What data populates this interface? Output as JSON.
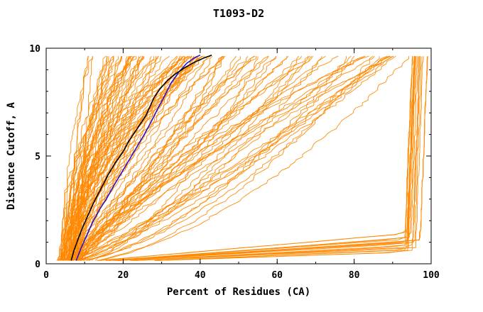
{
  "chart_data": {
    "type": "line",
    "title": "T1093-D2",
    "xlabel": "Percent of Residues (CA)",
    "ylabel": "Distance Cutoff, A",
    "xlim": [
      0,
      100
    ],
    "ylim": [
      0,
      10
    ],
    "xticks": [
      0,
      20,
      40,
      60,
      80,
      100
    ],
    "yticks": [
      0,
      5,
      10
    ],
    "x_minor_step": 10,
    "y_minor_step": 1,
    "grid": false,
    "legend": null,
    "colors": {
      "model_curves": "#ff8800",
      "highlight_black": "#000000",
      "highlight_blue": "#2a16c8",
      "axis": "#000000",
      "background": "#ffffff"
    },
    "series": [
      {
        "name": "blue-highlight-model",
        "color": "#2a16c8",
        "width": 1.6,
        "points": [
          [
            7.8,
            0.15
          ],
          [
            9,
            0.7
          ],
          [
            10.5,
            1.3
          ],
          [
            12,
            1.9
          ],
          [
            13.8,
            2.5
          ],
          [
            15.6,
            3.0
          ],
          [
            17.5,
            3.6
          ],
          [
            19.5,
            4.2
          ],
          [
            21.5,
            4.8
          ],
          [
            23.5,
            5.4
          ],
          [
            25.5,
            6.0
          ],
          [
            27.3,
            6.6
          ],
          [
            29,
            7.2
          ],
          [
            30.8,
            7.8
          ],
          [
            32.5,
            8.4
          ],
          [
            34.5,
            8.9
          ],
          [
            36.5,
            9.3
          ],
          [
            38.5,
            9.55
          ],
          [
            40,
            9.68
          ]
        ]
      },
      {
        "name": "black-highlight-model",
        "color": "#000000",
        "width": 1.6,
        "points": [
          [
            6.5,
            0.15
          ],
          [
            7.2,
            0.6
          ],
          [
            8.2,
            1.1
          ],
          [
            9.5,
            1.7
          ],
          [
            11,
            2.3
          ],
          [
            12.5,
            2.9
          ],
          [
            14,
            3.4
          ],
          [
            16,
            4.1
          ],
          [
            18,
            4.7
          ],
          [
            20,
            5.2
          ],
          [
            21.5,
            5.7
          ],
          [
            23,
            6.1
          ],
          [
            24.5,
            6.5
          ],
          [
            26,
            6.9
          ],
          [
            27,
            7.3
          ],
          [
            28,
            7.7
          ],
          [
            29.5,
            8.1
          ],
          [
            31.5,
            8.5
          ],
          [
            33.5,
            8.8
          ],
          [
            36,
            9.1
          ],
          [
            38.5,
            9.35
          ],
          [
            41,
            9.55
          ],
          [
            43,
            9.68
          ]
        ]
      }
    ],
    "model_ensemble": {
      "description": "Large family of orange per-model GDT curves (percent of CA residues under each distance cutoff); shapes approximated from the screenshot",
      "count": 130,
      "seed": 11,
      "x_start_range": [
        3,
        9
      ],
      "groups": [
        {
          "frac": 0.52,
          "xtop": [
            11,
            45
          ],
          "exp": [
            0.9,
            2.4
          ]
        },
        {
          "frac": 0.36,
          "xtop": [
            45,
            100
          ],
          "exp": [
            0.55,
            1.5
          ]
        },
        {
          "frac": 0.12,
          "xtop": [
            95,
            99.5
          ],
          "knee_y": [
            0.5,
            1.6
          ]
        }
      ],
      "jitter": 0.7,
      "y_draw_range": [
        0.15,
        9.68
      ]
    }
  }
}
